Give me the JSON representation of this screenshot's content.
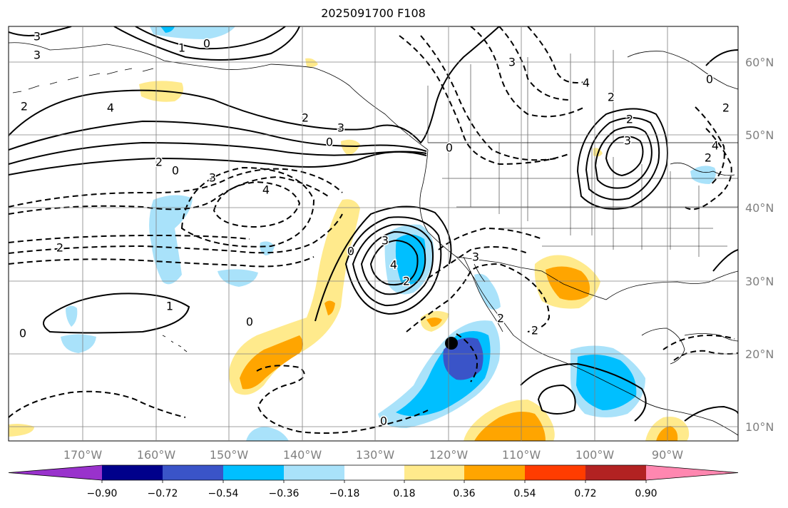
{
  "map": {
    "title": "2025091700 F108",
    "longitude_labels": [
      "170°W",
      "160°W",
      "150°W",
      "140°W",
      "130°W",
      "120°W",
      "110°W",
      "100°W",
      "90°W"
    ],
    "latitude_labels": [
      "10°N",
      "20°N",
      "30°N",
      "40°N",
      "50°N",
      "60°N"
    ],
    "contour_labels": [
      "3",
      "3",
      "1",
      "0",
      "2",
      "4",
      "2",
      "3",
      "0",
      "2",
      "0",
      "3",
      "4",
      "2",
      "0",
      "3",
      "4",
      "2",
      "3",
      "2",
      "2",
      "1",
      "0",
      "0",
      "0",
      "3",
      "4",
      "2",
      "3",
      "2",
      "0",
      "0",
      "2",
      "2",
      "4"
    ],
    "grid_color": "#808080",
    "label_color": "#808080"
  },
  "colorbar": {
    "colors": [
      "#9932cc",
      "#00008b",
      "#3a54c8",
      "#00bfff",
      "#a9e2fa",
      "#ffffff",
      "#ffea8c",
      "#ffa500",
      "#ff3c00",
      "#b22222",
      "#ff87b0"
    ],
    "tick_labels": [
      "−0.90",
      "−0.72",
      "−0.54",
      "−0.36",
      "−0.18",
      "0.18",
      "0.36",
      "0.54",
      "0.72",
      "0.90"
    ]
  },
  "legend": {
    "fill_variable": "",
    "contour_variable": ""
  }
}
